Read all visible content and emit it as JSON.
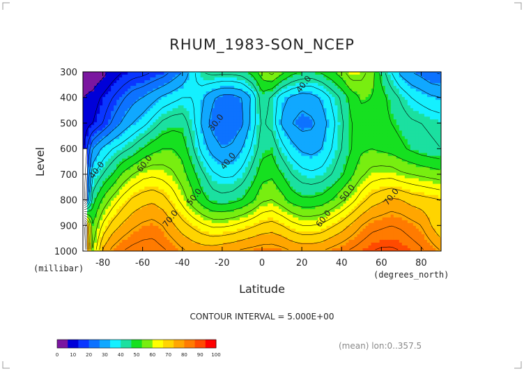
{
  "title": "RHUM_1983-SON_NCEP",
  "contour_note": "CONTOUR INTERVAL = 5.000E+00",
  "mean_note": "(mean) lon:0..357.5",
  "chart_data": {
    "type": "heatmap",
    "title": "RHUM_1983-SON_NCEP",
    "xlabel": "Latitude",
    "xunit": "(degrees_north)",
    "ylabel": "Level",
    "yunit": "(millibar)",
    "xlim": [
      -90,
      90
    ],
    "ylim": [
      1000,
      300
    ],
    "xticks": [
      "-80",
      "-60",
      "-40",
      "-20",
      "0",
      "20",
      "40",
      "60",
      "80"
    ],
    "xtick_values": [
      -80,
      -60,
      -40,
      -20,
      0,
      20,
      40,
      60,
      80
    ],
    "yticks": [
      "300",
      "400",
      "500",
      "600",
      "700",
      "800",
      "900",
      "1000"
    ],
    "ytick_values": [
      300,
      400,
      500,
      600,
      700,
      800,
      900,
      1000
    ],
    "contour_interval": 5,
    "levels": [
      0,
      10,
      20,
      30,
      40,
      50,
      60,
      70,
      80,
      90,
      100
    ],
    "colorbar_labels": [
      "0",
      "10",
      "20",
      "30",
      "40",
      "50",
      "60",
      "70",
      "80",
      "90",
      "100"
    ],
    "colors": [
      "#7a16a0",
      "#0000d8",
      "#0a36ff",
      "#0d72ff",
      "#10a8ff",
      "#14f0ff",
      "#1be0a0",
      "#16e020",
      "#78ee10",
      "#ffff00",
      "#ffd400",
      "#ffa600",
      "#ff7b00",
      "#ff4a00",
      "#ff0000"
    ],
    "contour_labels": [
      {
        "text": "30.0",
        "lat": -22,
        "level": 505
      },
      {
        "text": "40.0",
        "lat": -16,
        "level": 655
      },
      {
        "text": "40.0",
        "lat": 22,
        "level": 355
      },
      {
        "text": "40.0",
        "lat": -82,
        "level": 690
      },
      {
        "text": "50.0",
        "lat": -33,
        "level": 795
      },
      {
        "text": "50.0",
        "lat": 44,
        "level": 780
      },
      {
        "text": "60.0",
        "lat": -58,
        "level": 665
      },
      {
        "text": "60.0",
        "lat": 32,
        "level": 880
      },
      {
        "text": "70.0",
        "lat": -45,
        "level": 880
      },
      {
        "text": "70.0",
        "lat": 66,
        "level": 795
      }
    ],
    "grid_latitudes": [
      -90,
      -85,
      -80,
      -75,
      -70,
      -65,
      -60,
      -55,
      -50,
      -45,
      -40,
      -35,
      -30,
      -25,
      -20,
      -15,
      -10,
      -5,
      0,
      5,
      10,
      15,
      20,
      25,
      30,
      35,
      40,
      45,
      50,
      55,
      60,
      65,
      70,
      75,
      80,
      85,
      90
    ],
    "profiles": [
      {
        "level": 300,
        "values": [
          4,
          5,
          8,
          12,
          15,
          17,
          18,
          20,
          22,
          26,
          30,
          38,
          45,
          47,
          47,
          47,
          48,
          52,
          58,
          62,
          57,
          52,
          50,
          49,
          51,
          54,
          58,
          64,
          62,
          58,
          48,
          40,
          33,
          30,
          28,
          25,
          24
        ]
      },
      {
        "level": 400,
        "values": null,
        "lines": [
          10,
          12,
          16,
          20,
          24,
          28,
          30,
          33,
          36,
          38,
          40,
          40,
          36,
          31,
          28,
          28,
          30,
          36,
          48,
          44,
          37,
          34,
          32,
          33,
          36,
          41,
          46,
          52,
          56,
          55,
          52,
          48,
          44,
          40,
          38,
          36,
          35
        ]
      },
      {
        "level": 500,
        "values": [
          12,
          15,
          20,
          26,
          31,
          35,
          38,
          42,
          46,
          48,
          48,
          42,
          34,
          28,
          25,
          26,
          29,
          37,
          46,
          43,
          34,
          30,
          28,
          29,
          32,
          38,
          44,
          50,
          52,
          53,
          52,
          50,
          48,
          46,
          45,
          44,
          43
        ]
      },
      {
        "level": 600,
        "values": [
          13,
          30,
          36,
          40,
          43,
          46,
          50,
          53,
          55,
          55,
          53,
          46,
          38,
          33,
          30,
          31,
          35,
          41,
          48,
          49,
          42,
          37,
          34,
          33,
          35,
          40,
          45,
          50,
          54,
          55,
          54,
          53,
          51,
          49,
          47,
          46,
          45
        ]
      },
      {
        "level": 700,
        "values": [
          14,
          39,
          45,
          50,
          56,
          60,
          63,
          64,
          63,
          61,
          57,
          52,
          46,
          41,
          39,
          39,
          42,
          47,
          53,
          54,
          50,
          45,
          42,
          41,
          42,
          45,
          49,
          54,
          59,
          62,
          63,
          63,
          61,
          60,
          59,
          58,
          57
        ]
      },
      {
        "level": 800,
        "values": [
          15,
          48,
          56,
          62,
          67,
          71,
          73,
          74,
          72,
          68,
          63,
          57,
          52,
          48,
          47,
          48,
          50,
          54,
          59,
          60,
          57,
          53,
          51,
          51,
          52,
          55,
          59,
          63,
          68,
          72,
          74,
          76,
          75,
          73,
          72,
          71,
          70
        ]
      },
      {
        "level": 900,
        "values": [
          90,
          55,
          66,
          72,
          76,
          79,
          81,
          82,
          80,
          76,
          72,
          69,
          66,
          64,
          64,
          65,
          67,
          69,
          71,
          72,
          70,
          67,
          65,
          65,
          66,
          69,
          72,
          76,
          80,
          83,
          84,
          85,
          84,
          82,
          80,
          75,
          70
        ]
      },
      {
        "level": 1000,
        "values": [
          95,
          60,
          76,
          82,
          85,
          87,
          88,
          88,
          86,
          84,
          81,
          79,
          78,
          78,
          79,
          80,
          81,
          82,
          83,
          83,
          82,
          80,
          79,
          79,
          80,
          82,
          84,
          86,
          88,
          90,
          91,
          91,
          90,
          88,
          86,
          83,
          80
        ]
      }
    ]
  }
}
